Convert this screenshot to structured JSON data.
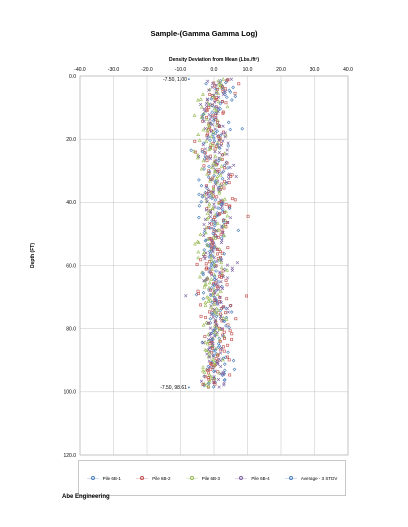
{
  "chart_data": {
    "type": "scatter",
    "title": "Sample-(Gamma Gamma Log)",
    "xlabel": "Density Deviation from Mean (Lbs./ft³)",
    "ylabel": "Depth (FT)",
    "x_axis_position": "top",
    "y_axis_inverted": true,
    "grid": true,
    "xlim": [
      -40,
      40
    ],
    "ylim": [
      0,
      120
    ],
    "x_ticks": [
      "-40.0",
      "-30.0",
      "-20.0",
      "-10.0",
      "0.0",
      "10.0",
      "20.0",
      "30.0",
      "40.0"
    ],
    "y_ticks": [
      "0.0",
      "20.0",
      "40.0",
      "60.0",
      "80.0",
      "100.0",
      "120.0"
    ],
    "series": [
      {
        "name": "Pile 6B-1",
        "color": "#4a7ebb",
        "marker": "diamond",
        "depth_range": [
          1,
          98.6
        ],
        "x_center": 0.5,
        "x_spread": 2.2
      },
      {
        "name": "Pile 6B-2",
        "color": "#be4b48",
        "marker": "square",
        "depth_range": [
          1,
          98.6
        ],
        "x_center": 0.8,
        "x_spread": 2.2
      },
      {
        "name": "Pile 6B-3",
        "color": "#98b954",
        "marker": "triangle",
        "depth_range": [
          1,
          98.6
        ],
        "x_center": -0.4,
        "x_spread": 2.0
      },
      {
        "name": "Pile 6B-4",
        "color": "#7d60a0",
        "marker": "x",
        "depth_range": [
          1,
          98.6
        ],
        "x_center": 0.6,
        "x_spread": 2.1
      },
      {
        "name": "Average - 3 STDV",
        "color": "#4a7ebb",
        "marker": "point",
        "points": [
          [
            -7.5,
            1.0
          ],
          [
            -7.5,
            98.61
          ]
        ]
      }
    ],
    "annotations": [
      {
        "text": "-7.50, 1.00",
        "x": -7.5,
        "y": 1.0
      },
      {
        "text": "-7.50, 98.61",
        "x": -7.5,
        "y": 98.61
      }
    ],
    "legend_position": "bottom"
  },
  "footer": {
    "company": "Abe Engineering"
  }
}
